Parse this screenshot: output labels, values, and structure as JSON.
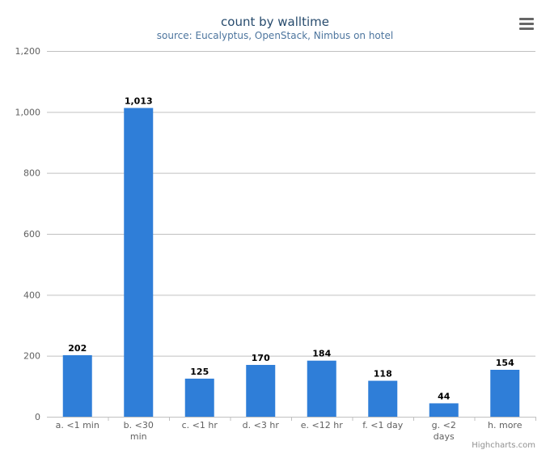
{
  "chart_data": {
    "type": "bar",
    "title": "count by walltime",
    "subtitle": "source: Eucalyptus, OpenStack, Nimbus on hotel",
    "categories": [
      "a. <1 min",
      "b. <30 min",
      "c. <1 hr",
      "d. <3 hr",
      "e. <12 hr",
      "f. <1 day",
      "g. <2 days",
      "h. more"
    ],
    "category_lines": [
      [
        "a. <1 min"
      ],
      [
        "b. <30",
        "min"
      ],
      [
        "c. <1 hr"
      ],
      [
        "d. <3 hr"
      ],
      [
        "e. <12 hr"
      ],
      [
        "f. <1 day"
      ],
      [
        "g. <2",
        "days"
      ],
      [
        "h. more"
      ]
    ],
    "values": [
      202,
      1013,
      125,
      170,
      184,
      118,
      44,
      154
    ],
    "value_labels": [
      "202",
      "1,013",
      "125",
      "170",
      "184",
      "118",
      "44",
      "154"
    ],
    "ylim": [
      0,
      1200
    ],
    "yticks": [
      0,
      200,
      400,
      600,
      800,
      1000,
      1200
    ],
    "ytick_labels": [
      "0",
      "200",
      "400",
      "600",
      "800",
      "1,000",
      "1,200"
    ],
    "xlabel": "",
    "ylabel": "",
    "grid": true,
    "legend": "none",
    "colors": {
      "bar": "#2f7ed8",
      "title": "#274b6d",
      "subtitle": "#4d759e",
      "grid": "#c0c0c0",
      "axis_text": "#606060",
      "data_label": "#000000",
      "credit": "#909090",
      "menu": "#666666"
    }
  },
  "credits": "Highcharts.com",
  "menu_icon": "menu-icon"
}
